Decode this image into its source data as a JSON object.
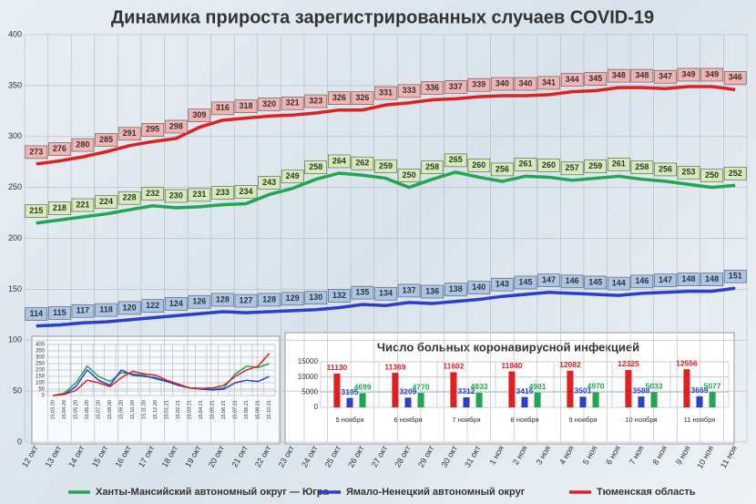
{
  "chart_data": [
    {
      "type": "line",
      "title": "Динамика прироста зарегистрированных случаев COVID-19",
      "categories": [
        "12 окт",
        "13 окт",
        "14 окт",
        "15 окт",
        "16 окт",
        "17 окт",
        "18 окт",
        "19 окт",
        "20 окт",
        "21 окт",
        "22 окт",
        "23 окт",
        "24 окт",
        "25 окт",
        "26 окт",
        "27 окт",
        "28 окт",
        "29 окт",
        "30 окт",
        "31 окт",
        "1 ноя",
        "2 ноя",
        "3 ноя",
        "4 ноя",
        "5 ноя",
        "6 ноя",
        "7 ноя",
        "8 ноя",
        "9 ноя",
        "10 ноя",
        "11 ноя"
      ],
      "series": [
        {
          "name": "Ханты-Мансийский автономный округ — Югра",
          "color": "#1fa84f",
          "values": [
            215,
            218,
            221,
            224,
            228,
            232,
            230,
            231,
            233,
            234,
            243,
            249,
            258,
            264,
            262,
            259,
            250,
            258,
            265,
            260,
            256,
            261,
            260,
            257,
            259,
            261,
            258,
            256,
            253,
            250,
            252
          ]
        },
        {
          "name": "Ямало-Ненецкий автономный округ",
          "color": "#2a3fd0",
          "values": [
            114,
            115,
            117,
            118,
            120,
            122,
            124,
            126,
            128,
            127,
            128,
            129,
            130,
            132,
            135,
            134,
            137,
            136,
            138,
            140,
            143,
            145,
            147,
            146,
            145,
            144,
            146,
            147,
            148,
            148,
            151
          ]
        },
        {
          "name": "Тюменская область",
          "color": "#e02020",
          "values": [
            273,
            276,
            280,
            285,
            291,
            295,
            298,
            309,
            316,
            318,
            320,
            321,
            323,
            326,
            326,
            331,
            333,
            336,
            337,
            339,
            340,
            340,
            341,
            344,
            345,
            348,
            348,
            347,
            349,
            349,
            346
          ]
        }
      ],
      "ylim": [
        0,
        400
      ],
      "yticks": [
        0,
        50,
        100,
        150,
        200,
        250,
        300,
        350,
        400
      ],
      "grid": true,
      "legend": "bottom"
    },
    {
      "type": "line",
      "categories": [
        "15.03.20",
        "15.04.20",
        "15.05.20",
        "15.06.20",
        "15.07.20",
        "15.08.20",
        "15.09.20",
        "15.10.20",
        "15.11.20",
        "15.12.20",
        "15.01.21",
        "15.02.21",
        "15.03.21",
        "15.04.21",
        "15.05.21",
        "15.06.21",
        "15.07.21",
        "15.08.21",
        "15.09.21",
        "15.10.21"
      ],
      "series": [
        {
          "color": "#1fa84f",
          "values": [
            0,
            20,
            100,
            230,
            150,
            110,
            180,
            170,
            160,
            130,
            110,
            80,
            60,
            55,
            50,
            60,
            170,
            230,
            220,
            250
          ]
        },
        {
          "color": "#2a3fd0",
          "values": [
            0,
            10,
            70,
            200,
            120,
            80,
            200,
            160,
            150,
            140,
            110,
            80,
            60,
            50,
            45,
            50,
            100,
            120,
            110,
            150
          ]
        },
        {
          "color": "#e02020",
          "values": [
            0,
            10,
            40,
            120,
            100,
            70,
            140,
            190,
            170,
            160,
            120,
            90,
            60,
            55,
            60,
            80,
            150,
            200,
            230,
            330
          ]
        }
      ],
      "ylim": [
        0,
        400
      ],
      "yticks": [
        0,
        50,
        100,
        150,
        200,
        250,
        300,
        350,
        400
      ],
      "grid": true
    },
    {
      "type": "bar",
      "title": "Число больных коронавирусной  инфекцией",
      "categories": [
        "5 ноября",
        "6 ноября",
        "7 ноября",
        "8 ноября",
        "9 ноября",
        "10 ноября",
        "11 ноября"
      ],
      "series": [
        {
          "color": "#e02020",
          "values": [
            11130,
            11369,
            11602,
            11840,
            12082,
            12325,
            12556
          ]
        },
        {
          "color": "#2a3fd0",
          "values": [
            3105,
            3209,
            3312,
            3416,
            3501,
            3588,
            3669
          ]
        },
        {
          "color": "#1fa84f",
          "values": [
            4699,
            4770,
            4833,
            4901,
            4970,
            5033,
            5077
          ]
        }
      ],
      "ylim": [
        0,
        15000
      ],
      "yticks": [
        0,
        5000,
        10000,
        15000
      ],
      "grid": true
    }
  ]
}
